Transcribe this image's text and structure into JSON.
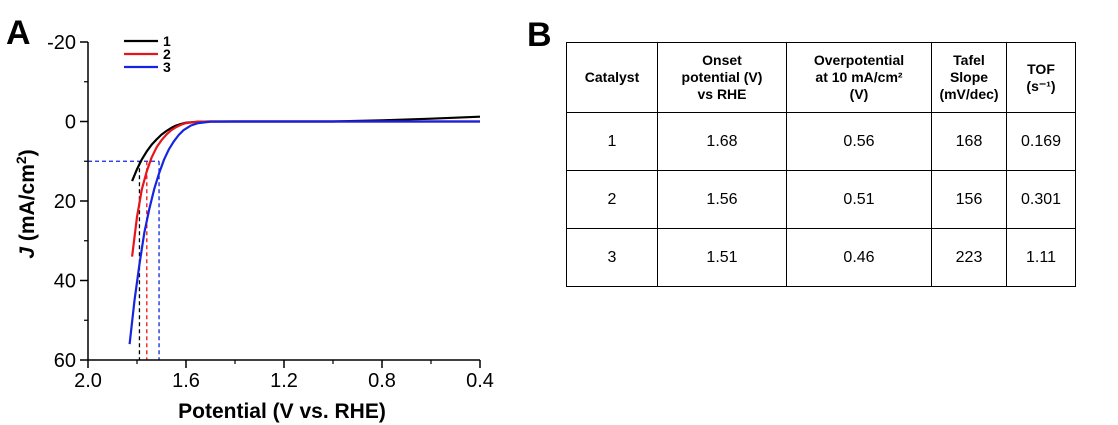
{
  "panel_a": {
    "letter": "A",
    "chart_data": {
      "type": "line",
      "xlabel_italic": "",
      "xlabel": "Potential (V vs. RHE)",
      "ylabel_italic": "J",
      "ylabel": " (mA/cm",
      "ylabel_sup": "2",
      "ylabel_end": ")",
      "xlim": [
        2.0,
        0.4
      ],
      "ylim": [
        -20,
        60
      ],
      "y_inverted": true,
      "x_ticks": [
        2.0,
        1.6,
        1.2,
        0.8,
        0.4
      ],
      "x_tick_labels": [
        "2.0",
        "1.6",
        "1.2",
        "0.8",
        "0.4"
      ],
      "y_ticks": [
        -20,
        0,
        20,
        40,
        60
      ],
      "y_tick_labels": [
        "-20",
        "0",
        "20",
        "40",
        "60"
      ],
      "legend_placement": "top-left",
      "series": [
        {
          "name": "1",
          "color": "#000000",
          "x": [
            1.82,
            1.8,
            1.78,
            1.76,
            1.74,
            1.72,
            1.7,
            1.68,
            1.66,
            1.64,
            1.62,
            1.6,
            1.55,
            1.5,
            1.4,
            1.2,
            1.0,
            0.8,
            0.6,
            0.4
          ],
          "y": [
            15,
            12,
            9.5,
            7.5,
            5.8,
            4.5,
            3.3,
            2.4,
            1.6,
            1.0,
            0.6,
            0.3,
            0.05,
            0,
            0,
            0,
            0,
            -0.3,
            -0.7,
            -1.2
          ]
        },
        {
          "name": "2",
          "color": "#e8141c",
          "x": [
            1.82,
            1.8,
            1.78,
            1.76,
            1.74,
            1.72,
            1.7,
            1.68,
            1.66,
            1.64,
            1.62,
            1.6,
            1.55,
            1.5,
            1.4,
            1.2,
            1.0,
            0.8,
            0.6,
            0.4
          ],
          "y": [
            34,
            24,
            17,
            12.5,
            9,
            6.5,
            4.7,
            3.3,
            2.2,
            1.4,
            0.8,
            0.4,
            0.05,
            0,
            0,
            0,
            0,
            0,
            0,
            0
          ]
        },
        {
          "name": "3",
          "color": "#1424e0",
          "x": [
            1.83,
            1.81,
            1.79,
            1.77,
            1.75,
            1.73,
            1.71,
            1.69,
            1.67,
            1.65,
            1.63,
            1.61,
            1.58,
            1.55,
            1.5,
            1.4,
            1.2,
            1.0,
            0.8,
            0.6,
            0.4
          ],
          "y": [
            56,
            45,
            36,
            28,
            22,
            17,
            13,
            9.6,
            7,
            5,
            3.4,
            2.2,
            1.0,
            0.4,
            0.05,
            0,
            0,
            0,
            0,
            0,
            0
          ]
        }
      ],
      "annotations": {
        "reference_current_density": 10,
        "potential_markers": [
          {
            "series": "1",
            "x": 1.79,
            "color": "#000000"
          },
          {
            "series": "2",
            "x": 1.76,
            "color": "#e8141c"
          },
          {
            "series": "3",
            "x": 1.71,
            "color": "#1424e0"
          }
        ]
      }
    }
  },
  "panel_b": {
    "letter": "B",
    "table": {
      "headers": [
        {
          "lines": [
            "Catalyst"
          ]
        },
        {
          "lines": [
            "Onset",
            "potential (V)",
            "vs RHE"
          ]
        },
        {
          "lines": [
            "Overpotential",
            "at 10 mA/cm²",
            "(V)"
          ]
        },
        {
          "lines": [
            "Tafel",
            "Slope",
            "(mV/dec)"
          ]
        },
        {
          "lines": [
            "TOF",
            "(s⁻¹)"
          ]
        }
      ],
      "rows": [
        [
          "1",
          "1.68",
          "0.56",
          "168",
          "0.169"
        ],
        [
          "2",
          "1.56",
          "0.51",
          "156",
          "0.301"
        ],
        [
          "3",
          "1.51",
          "0.46",
          "223",
          "1.11"
        ]
      ]
    }
  }
}
